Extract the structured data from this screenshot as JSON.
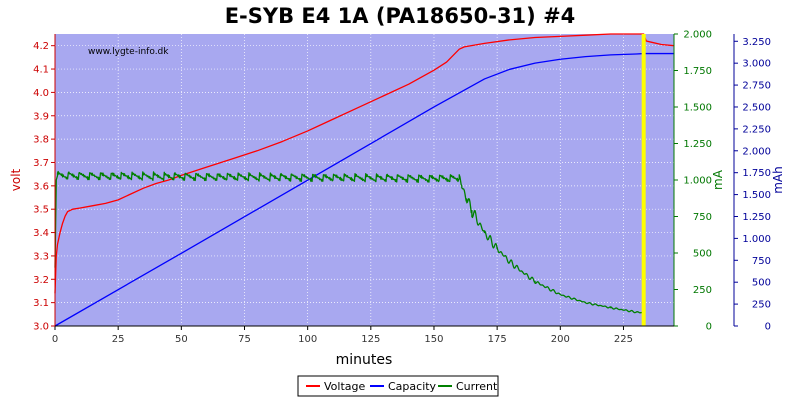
{
  "chart_data": {
    "type": "line",
    "title": "E-SYB E4 1A (PA18650-31) #4",
    "watermark": "www.lygte-info.dk",
    "xlabel": "minutes",
    "xlim": [
      0,
      245
    ],
    "xticks": [
      "0",
      "25",
      "50",
      "75",
      "100",
      "125",
      "150",
      "175",
      "200",
      "225"
    ],
    "grid": true,
    "legend_position": "bottom-center",
    "background_color": "#a8a8f0",
    "end_marker": {
      "x": 233,
      "color": "#ffff00"
    },
    "axes": {
      "voltage": {
        "label": "volt",
        "range": [
          3.0,
          4.25
        ],
        "ticks": [
          "3.0",
          "3.1",
          "3.2",
          "3.3",
          "3.4",
          "3.5",
          "3.6",
          "3.7",
          "3.8",
          "3.9",
          "4.0",
          "4.1",
          "4.2"
        ],
        "color": "#cc0000",
        "side": "left"
      },
      "current": {
        "label": "mA",
        "range": [
          0,
          2000
        ],
        "ticks": [
          "0",
          "250",
          "500",
          "750",
          "1.000",
          "1.250",
          "1.500",
          "1.750",
          "2.000"
        ],
        "color": "#007700",
        "side": "right"
      },
      "capacity": {
        "label": "mAh",
        "range": [
          0,
          3333
        ],
        "ticks": [
          "0",
          "250",
          "500",
          "750",
          "1.000",
          "1.250",
          "1.500",
          "1.750",
          "2.000",
          "2.250",
          "2.500",
          "2.750",
          "3.000",
          "3.250"
        ],
        "color": "#000099",
        "side": "right"
      }
    },
    "series": [
      {
        "name": "Voltage",
        "axis": "voltage",
        "color": "#ff0000",
        "x": [
          0,
          0.5,
          1,
          2,
          3,
          4,
          5,
          6,
          7,
          10,
          15,
          20,
          25,
          30,
          35,
          40,
          45,
          50,
          60,
          70,
          80,
          90,
          100,
          110,
          120,
          130,
          140,
          150,
          155,
          160,
          162,
          170,
          180,
          190,
          200,
          210,
          220,
          230,
          233,
          234,
          236,
          240,
          245
        ],
        "y": [
          3.14,
          3.3,
          3.35,
          3.4,
          3.44,
          3.47,
          3.49,
          3.495,
          3.5,
          3.505,
          3.515,
          3.525,
          3.54,
          3.565,
          3.59,
          3.61,
          3.625,
          3.645,
          3.68,
          3.715,
          3.75,
          3.79,
          3.835,
          3.885,
          3.935,
          3.985,
          4.035,
          4.095,
          4.13,
          4.185,
          4.195,
          4.21,
          4.225,
          4.235,
          4.24,
          4.245,
          4.25,
          4.25,
          4.25,
          4.22,
          4.215,
          4.205,
          4.2
        ]
      },
      {
        "name": "Capacity",
        "axis": "capacity",
        "color": "#0000ff",
        "x": [
          0,
          50,
          100,
          150,
          160,
          170,
          180,
          190,
          200,
          210,
          220,
          230,
          233,
          245
        ],
        "y": [
          0,
          830,
          1665,
          2500,
          2660,
          2820,
          2930,
          3000,
          3045,
          3075,
          3095,
          3105,
          3110,
          3110
        ]
      },
      {
        "name": "Current",
        "axis": "current",
        "color": "#008000",
        "sawtooth_from": 1,
        "sawtooth_to": 160,
        "sawtooth_period": 4.2,
        "sawtooth_amplitude": 45,
        "x": [
          0,
          0.5,
          1,
          160,
          161,
          163,
          165,
          168,
          170,
          175,
          180,
          185,
          190,
          200,
          210,
          220,
          230,
          233,
          233.1
        ],
        "y": [
          400,
          1000,
          1030,
          1010,
          960,
          870,
          790,
          700,
          640,
          530,
          440,
          370,
          305,
          215,
          160,
          125,
          95,
          90,
          0
        ]
      }
    ]
  }
}
